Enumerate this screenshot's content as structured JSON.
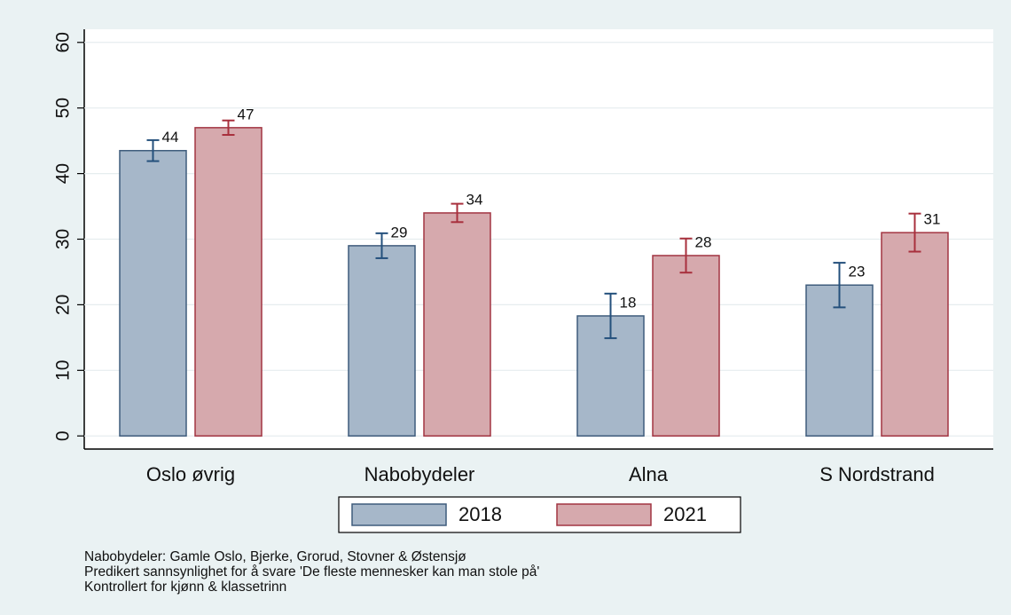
{
  "chart_data": {
    "type": "bar",
    "categories": [
      "Oslo øvrig",
      "Nabobydeler",
      "Alna",
      "S Nordstrand"
    ],
    "series": [
      {
        "name": "2018",
        "color": "#a6b7c9",
        "edge": "#3f5c7c",
        "error_color": "#24507c",
        "values": [
          43.5,
          29,
          18.3,
          23
        ],
        "value_labels": [
          "44",
          "29",
          "18",
          "23"
        ],
        "errors": [
          1.6,
          1.9,
          3.4,
          3.4
        ]
      },
      {
        "name": "2021",
        "color": "#d6a9ad",
        "edge": "#a23542",
        "error_color": "#a8303d",
        "values": [
          47,
          34,
          27.5,
          31
        ],
        "value_labels": [
          "47",
          "34",
          "28",
          "31"
        ],
        "errors": [
          1.1,
          1.4,
          2.6,
          2.9
        ]
      }
    ],
    "ylim": [
      -2,
      62
    ],
    "yticks": [
      0,
      10,
      20,
      30,
      40,
      50,
      60
    ],
    "grid": true,
    "notes": [
      "Nabobydeler: Gamle Oslo, Bjerke, Grorud, Stovner & Østensjø",
      "Predikert sannsynlighet for å svare 'De fleste mennesker kan man stole på'",
      "Kontrollert for kjønn & klassetrinn"
    ]
  }
}
